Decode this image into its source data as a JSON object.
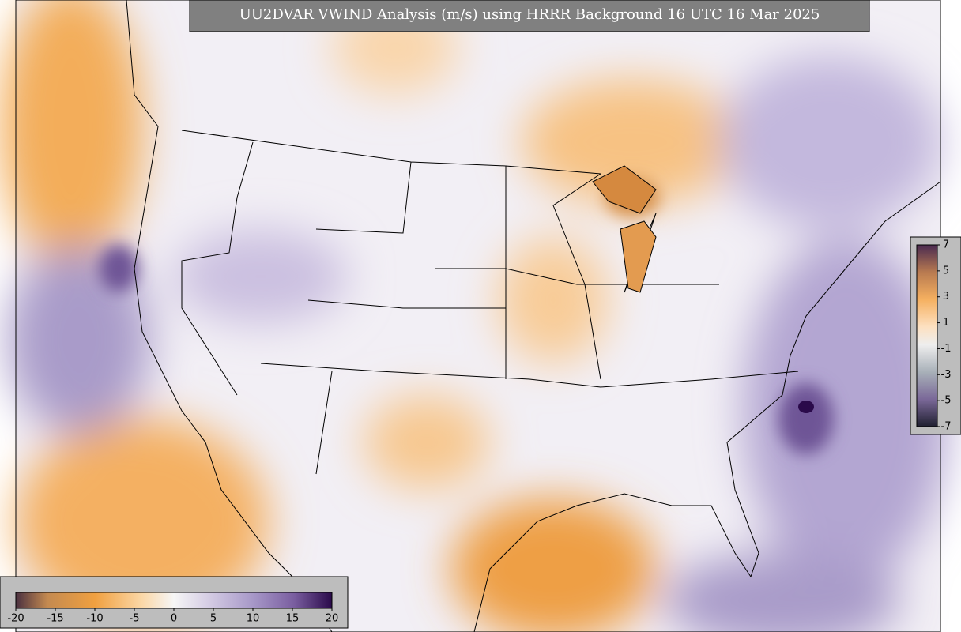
{
  "title": "UU2DVAR VWIND Analysis (m/s) using HRRR Background 16 UTC 16 Mar 2025",
  "colorbars": [
    {
      "range": [
        -20,
        20
      ],
      "ticks": [
        -20,
        -15,
        -10,
        -5,
        0,
        5,
        10,
        15,
        20
      ]
    },
    {
      "range": [
        -7,
        7
      ],
      "ticks": [
        7,
        5,
        3,
        1,
        -1,
        -3,
        -5,
        -7
      ]
    }
  ]
}
